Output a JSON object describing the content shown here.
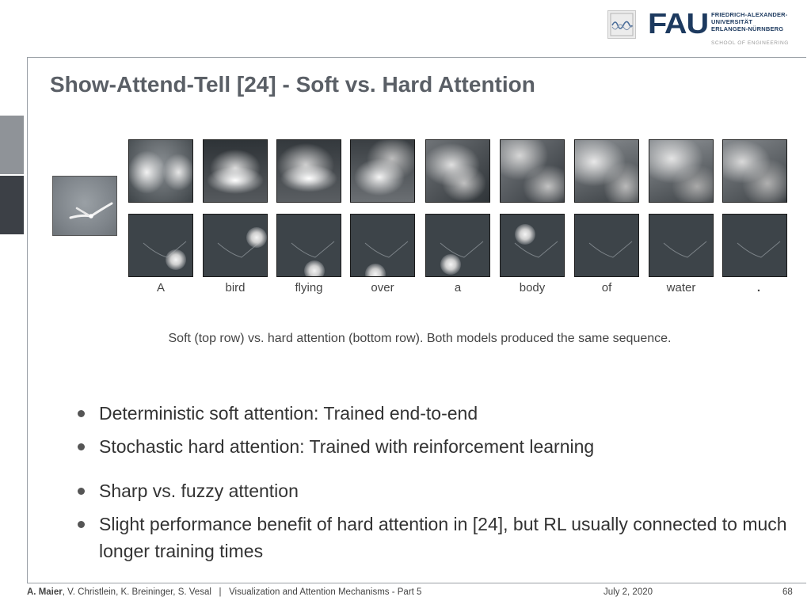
{
  "header": {
    "logo_text": "FAU",
    "university_lines": [
      "FRIEDRICH-ALEXANDER-",
      "UNIVERSITÄT",
      "ERLANGEN-NÜRNBERG"
    ],
    "school": "SCHOOL OF ENGINEERING"
  },
  "slide": {
    "title": "Show-Attend-Tell [24] - Soft vs. Hard Attention",
    "figure": {
      "words": [
        "A",
        "bird",
        "flying",
        "over",
        "a",
        "body",
        "of",
        "water",
        "."
      ],
      "caption": "Soft (top row) vs. hard attention (bottom row). Both models produced the same sequence."
    },
    "bullets": [
      "Deterministic soft attention: Trained end-to-end",
      "Stochastic hard attention: Trained with reinforcement learning",
      "Sharp vs. fuzzy attention",
      "Slight performance benefit of hard attention in [24], but RL usually connected to much longer training times"
    ]
  },
  "footer": {
    "author_main": "A. Maier",
    "authors_rest": ", V. Christlein, K. Breininger, S. Vesal",
    "separator": "|",
    "lecture": "Visualization and Attention Mechanisms - Part 5",
    "date": "July 2, 2020",
    "page": "68"
  }
}
